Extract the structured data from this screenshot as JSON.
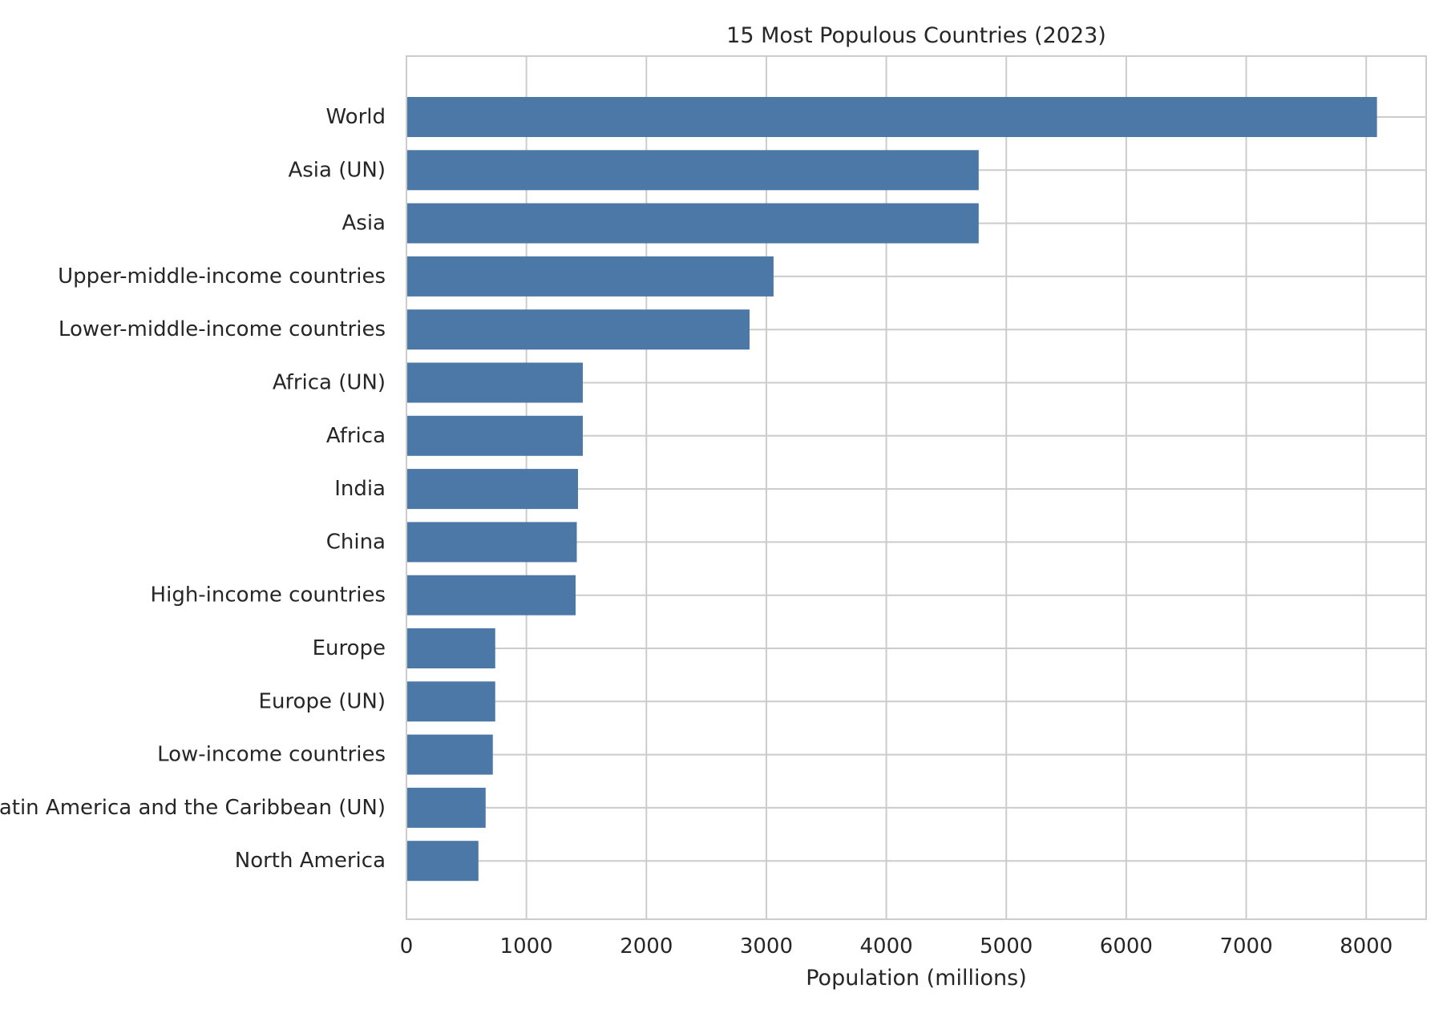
{
  "chart_data": {
    "type": "bar",
    "orientation": "horizontal",
    "title": "15 Most Populous Countries (2023)",
    "xlabel": "Population (millions)",
    "ylabel": "",
    "xlim": [
      0,
      8500
    ],
    "xticks": [
      0,
      1000,
      2000,
      3000,
      4000,
      5000,
      6000,
      7000,
      8000
    ],
    "grid": true,
    "bar_color": "#4c78a8",
    "categories": [
      "World",
      "Asia (UN)",
      "Asia",
      "Upper-middle-income countries",
      "Lower-middle-income countries",
      "Africa (UN)",
      "Africa",
      "India",
      "China",
      "High-income countries",
      "Europe",
      "Europe (UN)",
      "Low-income countries",
      "Latin America and the Caribbean (UN)",
      "North America"
    ],
    "values": [
      8090,
      4770,
      4770,
      3060,
      2860,
      1470,
      1470,
      1430,
      1420,
      1410,
      740,
      740,
      720,
      660,
      600
    ]
  }
}
